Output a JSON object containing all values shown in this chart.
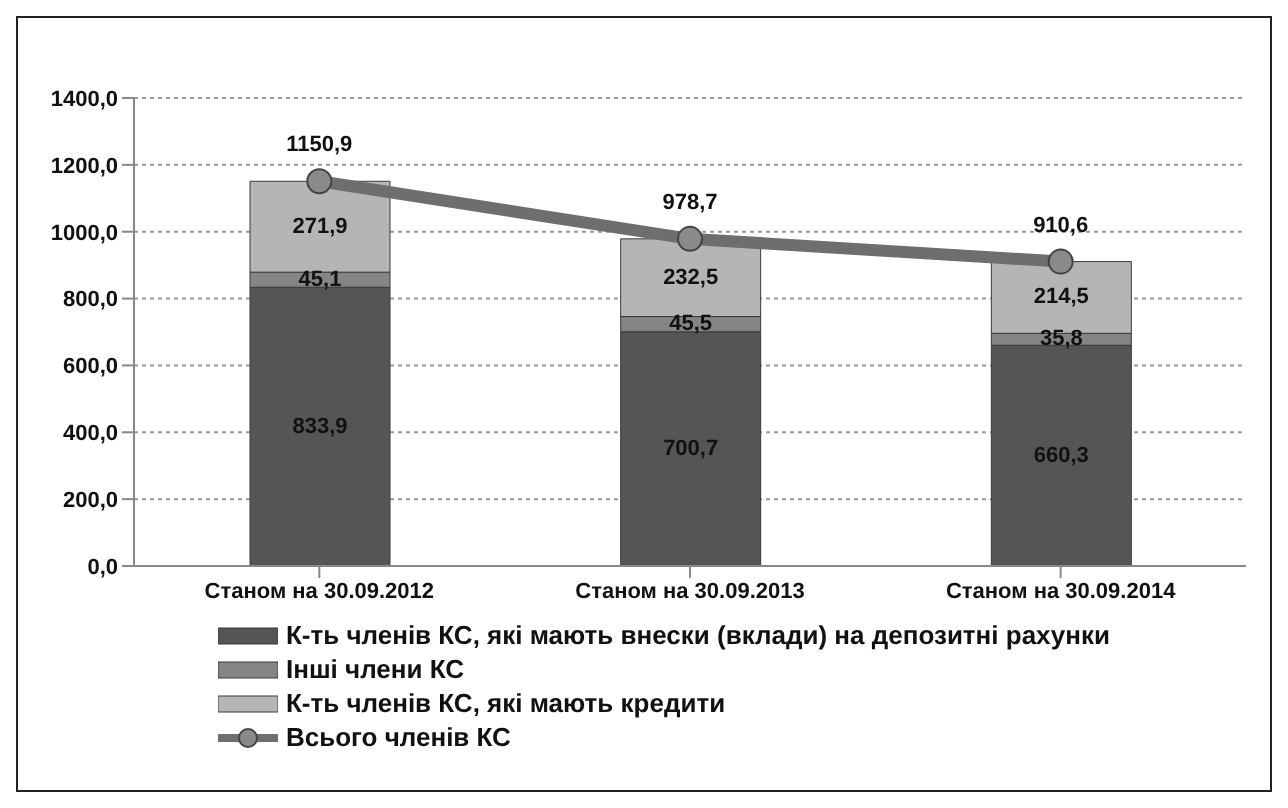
{
  "chart_data": {
    "type": "bar",
    "stacked": true,
    "categories": [
      "Станом на 30.09.2012",
      "Станом на 30.09.2013",
      "Станом на 30.09.2014"
    ],
    "series": [
      {
        "name": "К-ть членів КС, які мають внески (вклади) на депозитні рахунки",
        "color": "#555555",
        "values": [
          833.9,
          700.7,
          660.3
        ],
        "value_labels": [
          "833,9",
          "700,7",
          "660,3"
        ]
      },
      {
        "name": "Інші члени КС",
        "color": "#858585",
        "values": [
          45.1,
          45.5,
          35.8
        ],
        "value_labels": [
          "45,1",
          "45,5",
          "35,8"
        ]
      },
      {
        "name": "К-ть членів КС, які мають кредити",
        "color": "#b5b5b5",
        "values": [
          271.9,
          232.5,
          214.5
        ],
        "value_labels": [
          "271,9",
          "232,5",
          "214,5"
        ]
      },
      {
        "name": "Всього членів КС",
        "type": "line",
        "color": "#6e6e6e",
        "marker": "circle",
        "values": [
          1150.9,
          978.7,
          910.6
        ],
        "value_labels": [
          "1150,9",
          "978,7",
          "910,6"
        ]
      }
    ],
    "ylim": [
      0,
      1400
    ],
    "yticks": [
      {
        "value": 0,
        "label": "0,0"
      },
      {
        "value": 200,
        "label": "200,0"
      },
      {
        "value": 400,
        "label": "400,0"
      },
      {
        "value": 600,
        "label": "600,0"
      },
      {
        "value": 800,
        "label": "800,0"
      },
      {
        "value": 1000,
        "label": "1000,0"
      },
      {
        "value": 1200,
        "label": "1200,0"
      },
      {
        "value": 1400,
        "label": "1400,0"
      }
    ],
    "grid": "y",
    "legend": "bottom"
  }
}
